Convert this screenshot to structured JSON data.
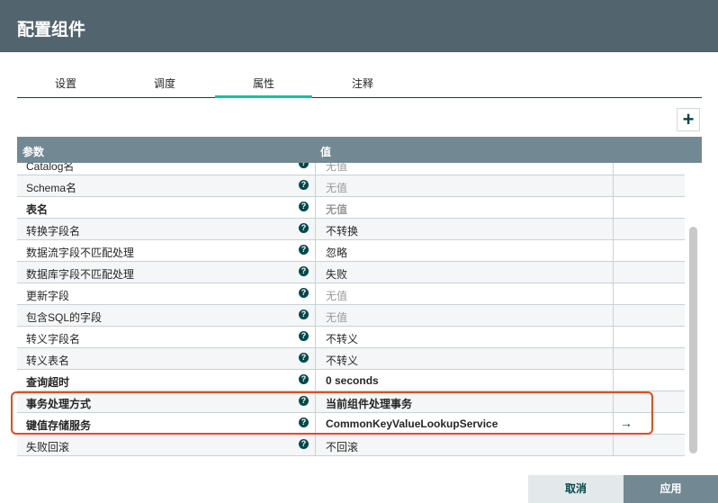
{
  "title": "配置组件",
  "tabs": [
    {
      "label": "设置"
    },
    {
      "label": "调度"
    },
    {
      "label": "属性",
      "active": true
    },
    {
      "label": "注释"
    }
  ],
  "add_button": "+",
  "table": {
    "headers": {
      "param": "参数",
      "value": "值"
    },
    "rows": [
      {
        "name": "Catalog名",
        "value": "无值",
        "empty": true
      },
      {
        "name": "Schema名",
        "value": "无值",
        "empty": true
      },
      {
        "name": "表名",
        "value": "无值",
        "empty": true,
        "required": true
      },
      {
        "name": "转换字段名",
        "value": "不转换"
      },
      {
        "name": "数据流字段不匹配处理",
        "value": "忽略"
      },
      {
        "name": "数据库字段不匹配处理",
        "value": "失败"
      },
      {
        "name": "更新字段",
        "value": "无值",
        "empty": true
      },
      {
        "name": "包含SQL的字段",
        "value": "无值",
        "empty": true
      },
      {
        "name": "转义字段名",
        "value": "不转义"
      },
      {
        "name": "转义表名",
        "value": "不转义"
      },
      {
        "name": "查询超时",
        "value": "0 seconds",
        "required": true
      },
      {
        "name": "事务处理方式",
        "value": "当前组件处理事务",
        "required": true
      },
      {
        "name": "键值存储服务",
        "value": "CommonKeyValueLookupService",
        "required": true,
        "action": "→"
      },
      {
        "name": "失败回滚",
        "value": "不回滚"
      }
    ]
  },
  "help_icon": "?",
  "highlight_color": "#e84a1e",
  "buttons": {
    "cancel": "取消",
    "apply": "应用"
  }
}
